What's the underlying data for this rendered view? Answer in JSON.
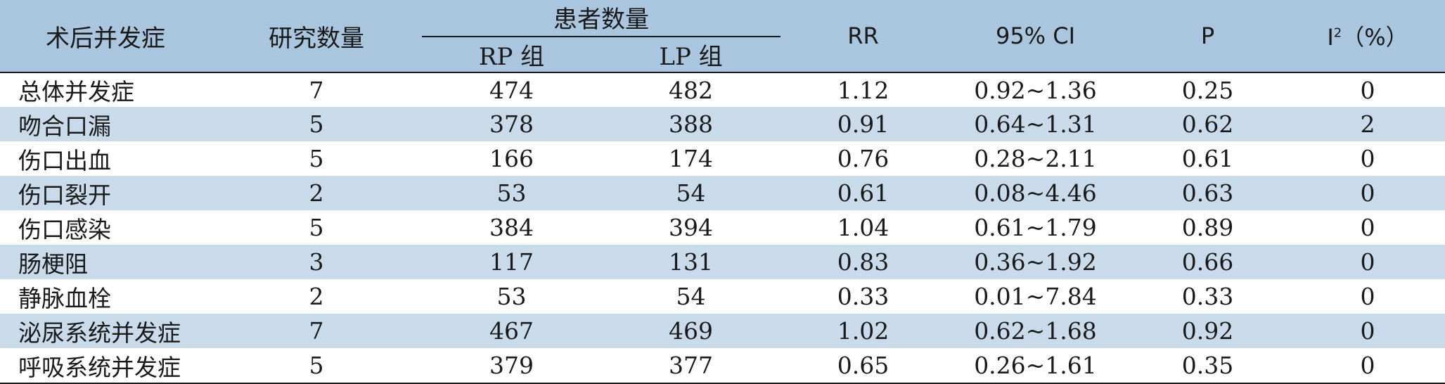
{
  "table": {
    "headers": {
      "complication": "术后并发症",
      "studies": "研究数量",
      "patients": "患者数量",
      "rp_group": "RP 组",
      "lp_group": "LP 组",
      "rr": "RR",
      "ci": "95% CI",
      "p": "P",
      "i2_base": "I",
      "i2_sup": "2",
      "i2_unit": "（%）"
    },
    "rows": [
      {
        "name": "总体并发症",
        "studies": "7",
        "rp": "474",
        "lp": "482",
        "rr": "1.12",
        "ci": "0.92~1.36",
        "p": "0.25",
        "i2": "0"
      },
      {
        "name": "吻合口漏",
        "studies": "5",
        "rp": "378",
        "lp": "388",
        "rr": "0.91",
        "ci": "0.64~1.31",
        "p": "0.62",
        "i2": "2"
      },
      {
        "name": "伤口出血",
        "studies": "5",
        "rp": "166",
        "lp": "174",
        "rr": "0.76",
        "ci": "0.28~2.11",
        "p": "0.61",
        "i2": "0"
      },
      {
        "name": "伤口裂开",
        "studies": "2",
        "rp": "53",
        "lp": "54",
        "rr": "0.61",
        "ci": "0.08~4.46",
        "p": "0.63",
        "i2": "0"
      },
      {
        "name": "伤口感染",
        "studies": "5",
        "rp": "384",
        "lp": "394",
        "rr": "1.04",
        "ci": "0.61~1.79",
        "p": "0.89",
        "i2": "0"
      },
      {
        "name": "肠梗阻",
        "studies": "3",
        "rp": "117",
        "lp": "131",
        "rr": "0.83",
        "ci": "0.36~1.92",
        "p": "0.66",
        "i2": "0"
      },
      {
        "name": "静脉血栓",
        "studies": "2",
        "rp": "53",
        "lp": "54",
        "rr": "0.33",
        "ci": "0.01~7.84",
        "p": "0.33",
        "i2": "0"
      },
      {
        "name": "泌尿系统并发症",
        "studies": "7",
        "rp": "467",
        "lp": "469",
        "rr": "1.02",
        "ci": "0.62~1.68",
        "p": "0.92",
        "i2": "0"
      },
      {
        "name": "呼吸系统并发症",
        "studies": "5",
        "rp": "379",
        "lp": "377",
        "rr": "0.65",
        "ci": "0.26~1.61",
        "p": "0.35",
        "i2": "0"
      }
    ]
  },
  "colors": {
    "header_bg": "#a9c6de",
    "alt_row_bg": "#c9dbea",
    "rule": "#1a1a1a"
  }
}
